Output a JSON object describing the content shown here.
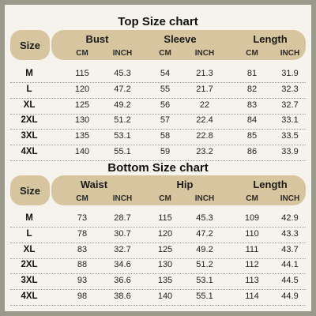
{
  "top": {
    "title": "Top Size chart",
    "size_header": "Size",
    "groups": [
      "Bust",
      "Sleeve",
      "Length"
    ],
    "units": [
      "CM",
      "INCH",
      "CM",
      "INCH",
      "CM",
      "INCH"
    ],
    "rows": [
      [
        "M",
        "115",
        "45.3",
        "54",
        "21.3",
        "81",
        "31.9"
      ],
      [
        "L",
        "120",
        "47.2",
        "55",
        "21.7",
        "82",
        "32.3"
      ],
      [
        "XL",
        "125",
        "49.2",
        "56",
        "22",
        "83",
        "32.7"
      ],
      [
        "2XL",
        "130",
        "51.2",
        "57",
        "22.4",
        "84",
        "33.1"
      ],
      [
        "3XL",
        "135",
        "53.1",
        "58",
        "22.8",
        "85",
        "33.5"
      ],
      [
        "4XL",
        "140",
        "55.1",
        "59",
        "23.2",
        "86",
        "33.9"
      ]
    ]
  },
  "bottom": {
    "title": "Bottom Size chart",
    "size_header": "Size",
    "groups": [
      "Waist",
      "Hip",
      "Length"
    ],
    "units": [
      "CM",
      "INCH",
      "CM",
      "INCH",
      "CM",
      "INCH"
    ],
    "rows": [
      [
        "M",
        "73",
        "28.7",
        "115",
        "45.3",
        "109",
        "42.9"
      ],
      [
        "L",
        "78",
        "30.7",
        "120",
        "47.2",
        "110",
        "43.3"
      ],
      [
        "XL",
        "83",
        "32.7",
        "125",
        "49.2",
        "111",
        "43.7"
      ],
      [
        "2XL",
        "88",
        "34.6",
        "130",
        "51.2",
        "112",
        "44.1"
      ],
      [
        "3XL",
        "93",
        "36.6",
        "135",
        "53.1",
        "113",
        "44.5"
      ],
      [
        "4XL",
        "98",
        "38.6",
        "140",
        "55.1",
        "114",
        "44.9"
      ]
    ]
  }
}
